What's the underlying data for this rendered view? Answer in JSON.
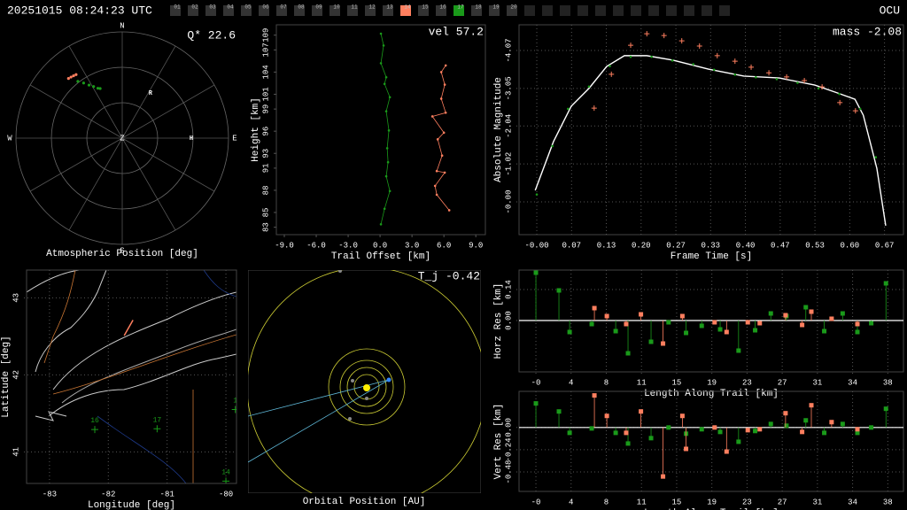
{
  "header": {
    "timestamp": "20251015 08:24:23 UTC",
    "station_code": "OCU",
    "stations": [
      "01",
      "02",
      "03",
      "04",
      "05",
      "06",
      "07",
      "08",
      "09",
      "10",
      "11",
      "12",
      "13",
      "14",
      "15",
      "16",
      "17",
      "18",
      "19",
      "20"
    ],
    "highlight": [
      {
        "index": 13,
        "color": "#ff7f5f"
      },
      {
        "index": 16,
        "color": "#1a9a1a"
      }
    ]
  },
  "chart_data": [
    {
      "type": "polar",
      "xlabel": "Atmospheric Position [deg]",
      "annotation": "Q* 22.6",
      "compass": [
        "N",
        "E",
        "S",
        "W"
      ],
      "zenith_label": "Z",
      "rlim": [
        0,
        90
      ],
      "rticks": [
        30,
        60,
        90
      ],
      "series": [
        {
          "color": "#ff7f5f",
          "az": [
            318,
            320,
            322,
            324
          ],
          "zenith": [
            68,
            67.5,
            67,
            66.5
          ]
        },
        {
          "color": "#1a9a1a",
          "az": [
            322,
            325,
            328,
            331,
            334,
            336
          ],
          "zenith": [
            61,
            57,
            53,
            50,
            47,
            46
          ]
        }
      ],
      "markers": [
        {
          "label": "R",
          "az": 32,
          "zenith": 45
        },
        {
          "label": "H",
          "az": 90,
          "zenith": 58.5
        }
      ]
    },
    {
      "type": "line",
      "xlabel": "Trail Offset [km]",
      "ylabel": "Height [km]",
      "annotation": "vel 57.2",
      "grid": false,
      "xlim": [
        -9.75,
        9.9
      ],
      "ylim": [
        82,
        110.4
      ],
      "xticks": [
        {
          "value": -9,
          "label": "-9.0"
        },
        {
          "value": -6,
          "label": "-6.0"
        },
        {
          "value": -3,
          "label": "-3.0"
        },
        {
          "value": 0,
          "label": "0.0"
        },
        {
          "value": 3,
          "label": "3.0"
        },
        {
          "value": 6,
          "label": "6.0"
        },
        {
          "value": 9,
          "label": "9.0"
        }
      ],
      "yticks": [
        83,
        85,
        88,
        91,
        93,
        96,
        99,
        101,
        104,
        107,
        109
      ],
      "series": [
        {
          "color": "#1a9a1a",
          "x": [
            0.08,
            0.33,
            0.08,
            0.58,
            0.42,
            0.92,
            0.58,
            0.83,
            0.67,
            0.75,
            0.58,
            0.92,
            0.42,
            0.08
          ],
          "values": [
            109.2,
            107.6,
            105.2,
            103.3,
            102.4,
            100.6,
            98.7,
            96.1,
            93.7,
            91.8,
            89.9,
            87.9,
            85.5,
            83.4
          ]
        },
        {
          "color": "#ff7f5f",
          "x": [
            6.17,
            5.75,
            6.08,
            5.75,
            6.17,
            4.92,
            6.0,
            5.42,
            5.83,
            5.33,
            6.08,
            5.17,
            5.33,
            6.5
          ],
          "values": [
            104.9,
            104.0,
            102.3,
            100.4,
            98.5,
            98.0,
            95.8,
            94.9,
            92.7,
            90.6,
            90.4,
            88.6,
            87.4,
            85.3
          ]
        }
      ]
    },
    {
      "type": "line",
      "xlabel": "Frame Time [s]",
      "ylabel": "Absolute Magnitude",
      "annotation": "mass -2.08",
      "grid": true,
      "xlim": [
        -0.034,
        0.703
      ],
      "ylim": [
        0.88,
        -4.76
      ],
      "xticks": [
        {
          "value": 0,
          "label": "-0.00"
        },
        {
          "value": 0.0667,
          "label": "0.07"
        },
        {
          "value": 0.1333,
          "label": "0.13"
        },
        {
          "value": 0.2,
          "label": "0.20"
        },
        {
          "value": 0.2667,
          "label": "0.27"
        },
        {
          "value": 0.3333,
          "label": "0.33"
        },
        {
          "value": 0.4,
          "label": "0.40"
        },
        {
          "value": 0.4667,
          "label": "0.47"
        },
        {
          "value": 0.5333,
          "label": "0.53"
        },
        {
          "value": 0.6,
          "label": "0.60"
        },
        {
          "value": 0.6667,
          "label": "0.67"
        }
      ],
      "yticks": [
        -4.07,
        -3.05,
        -2.04,
        -1.02,
        {
          "value": 0,
          "label": "-0.00"
        }
      ],
      "series": [
        {
          "color": "#ffffff",
          "style": "line",
          "x": [
            -0.003,
            0.032,
            0.066,
            0.1,
            0.134,
            0.168,
            0.211,
            0.261,
            0.329,
            0.397,
            0.465,
            0.533,
            0.576,
            0.61,
            0.626,
            0.652,
            0.669
          ],
          "values": [
            -0.31,
            -1.62,
            -2.57,
            -3.05,
            -3.64,
            -3.93,
            -3.93,
            -3.81,
            -3.57,
            -3.38,
            -3.33,
            -3.14,
            -2.93,
            -2.76,
            -2.33,
            -0.9,
            0.64
          ]
        },
        {
          "color": "#1a9a1a",
          "style": "dots",
          "x": [
            0.0,
            0.03,
            0.06,
            0.1,
            0.14,
            0.18,
            0.22,
            0.26,
            0.3,
            0.34,
            0.38,
            0.42,
            0.46,
            0.5,
            0.54,
            0.58,
            0.62,
            0.65
          ],
          "values": [
            -0.2,
            -1.5,
            -2.5,
            -3.1,
            -3.65,
            -3.9,
            -3.9,
            -3.8,
            -3.7,
            -3.55,
            -3.42,
            -3.35,
            -3.3,
            -3.2,
            -3.05,
            -2.9,
            -2.5,
            -1.2
          ]
        },
        {
          "color": "#ff7f5f",
          "style": "crosses",
          "x": [
            0.11,
            0.143,
            0.18,
            0.211,
            0.244,
            0.278,
            0.312,
            0.346,
            0.38,
            0.411,
            0.445,
            0.479,
            0.513,
            0.547,
            0.581,
            0.611
          ],
          "values": [
            -2.52,
            -3.43,
            -4.21,
            -4.52,
            -4.47,
            -4.33,
            -4.19,
            -3.93,
            -3.78,
            -3.62,
            -3.47,
            -3.36,
            -3.26,
            -3.09,
            -2.67,
            -2.45
          ]
        }
      ]
    },
    {
      "type": "map",
      "xlabel": "Longitude [deg]",
      "ylabel": "Latitude [deg]",
      "grid": true,
      "xlim": [
        -83.39,
        -79.82
      ],
      "ylim": [
        40.59,
        43.36
      ],
      "xticks": [
        -83,
        -82,
        -81,
        -80
      ],
      "yticks": [
        41,
        42,
        43
      ],
      "stations": [
        {
          "label": "16",
          "lon": -82.23,
          "lat": 41.29
        },
        {
          "label": "17",
          "lon": -81.17,
          "lat": 41.3
        },
        {
          "label": "1",
          "lon": -79.84,
          "lat": 41.55
        },
        {
          "label": "14",
          "lon": -80.0,
          "lat": 40.62
        }
      ],
      "series": [
        {
          "color": "#ff7f5f",
          "x": [
            -81.73,
            -81.58
          ],
          "values": [
            42.51,
            42.71
          ]
        }
      ]
    },
    {
      "type": "orbit",
      "xlabel": "Orbital Position [AU]",
      "annotation": "T_j -0.42"
    },
    {
      "type": "stem",
      "xlabel": "Length Along Trail [km]",
      "ylabel": "Horz Res [km]",
      "grid": true,
      "xlim": [
        -1.83,
        39.9
      ],
      "ylim": [
        -0.232,
        0.228
      ],
      "xticks": [
        {
          "value": 0,
          "label": "-0"
        },
        {
          "value": 3.82,
          "label": "4"
        },
        {
          "value": 7.64,
          "label": "8"
        },
        {
          "value": 11.46,
          "label": "11"
        },
        {
          "value": 15.28,
          "label": "15"
        },
        {
          "value": 19.1,
          "label": "19"
        },
        {
          "value": 22.92,
          "label": "23"
        },
        {
          "value": 26.74,
          "label": "27"
        },
        {
          "value": 30.56,
          "label": "31"
        },
        {
          "value": 34.38,
          "label": "34"
        },
        {
          "value": 38.2,
          "label": "38"
        }
      ],
      "yticks": [
        {
          "value": 0,
          "label": "0.00"
        },
        0.14
      ],
      "series": [
        {
          "color": "#1a9a1a",
          "x": [
            0,
            2.5,
            3.66,
            6.06,
            8.66,
            10.0,
            12.5,
            14.4,
            16.3,
            18.0,
            20.0,
            22.0,
            23.8,
            25.5,
            27.2,
            29.3,
            31.3,
            33.3,
            34.9,
            36.4,
            38.0
          ],
          "values": [
            0.216,
            0.136,
            -0.052,
            -0.016,
            -0.048,
            -0.148,
            -0.096,
            -0.008,
            -0.056,
            -0.024,
            -0.04,
            -0.136,
            -0.044,
            0.032,
            0.02,
            0.06,
            -0.048,
            0.032,
            -0.052,
            -0.012,
            0.168
          ]
        },
        {
          "color": "#ff7f5f",
          "x": [
            6.35,
            7.7,
            9.8,
            11.4,
            13.8,
            15.9,
            19.4,
            20.7,
            23.0,
            24.3,
            27.1,
            28.9,
            29.9,
            32.1,
            34.9
          ],
          "values": [
            0.056,
            0.02,
            -0.016,
            0.028,
            -0.104,
            0.02,
            -0.008,
            -0.052,
            -0.008,
            -0.012,
            0.024,
            -0.02,
            0.04,
            0.008,
            -0.016
          ]
        }
      ]
    },
    {
      "type": "stem",
      "xlabel": "Length Along Trail [km]",
      "ylabel": "Vert Res [km]",
      "grid": true,
      "xlim": [
        -1.83,
        39.9
      ],
      "ylim": [
        -0.69,
        0.39
      ],
      "xticks": [
        {
          "value": 0,
          "label": "-0"
        },
        {
          "value": 3.82,
          "label": "4"
        },
        {
          "value": 7.64,
          "label": "8"
        },
        {
          "value": 11.46,
          "label": "11"
        },
        {
          "value": 15.28,
          "label": "15"
        },
        {
          "value": 19.1,
          "label": "19"
        },
        {
          "value": 22.92,
          "label": "23"
        },
        {
          "value": 26.74,
          "label": "27"
        },
        {
          "value": 30.56,
          "label": "31"
        },
        {
          "value": 34.38,
          "label": "34"
        },
        {
          "value": 38.2,
          "label": "38"
        }
      ],
      "yticks": [
        {
          "value": 0,
          "label": "0.00"
        },
        -0.24,
        -0.48
      ],
      "series": [
        {
          "color": "#1a9a1a",
          "x": [
            0,
            2.5,
            3.66,
            6.06,
            8.66,
            10.0,
            12.5,
            14.4,
            16.3,
            18.0,
            20.0,
            22.0,
            23.8,
            25.5,
            27.2,
            29.3,
            31.3,
            33.3,
            34.9,
            36.4,
            38.0
          ],
          "values": [
            0.26,
            0.173,
            -0.058,
            -0.01,
            -0.058,
            -0.173,
            -0.115,
            0,
            -0.067,
            -0.019,
            -0.048,
            -0.154,
            -0.038,
            0.038,
            0.019,
            0.077,
            -0.058,
            0.038,
            -0.058,
            0,
            0.202
          ]
        },
        {
          "color": "#ff7f5f",
          "x": [
            6.35,
            7.7,
            9.8,
            11.4,
            13.8,
            15.9,
            16.3,
            19.4,
            20.7,
            23.0,
            24.3,
            27.1,
            28.9,
            29.9,
            32.1,
            34.9
          ],
          "values": [
            0.346,
            0.125,
            -0.058,
            0.173,
            -0.529,
            0.125,
            -0.231,
            0,
            -0.26,
            -0.029,
            -0.019,
            0.154,
            -0.048,
            0.24,
            0.058,
            -0.019
          ]
        }
      ]
    }
  ]
}
